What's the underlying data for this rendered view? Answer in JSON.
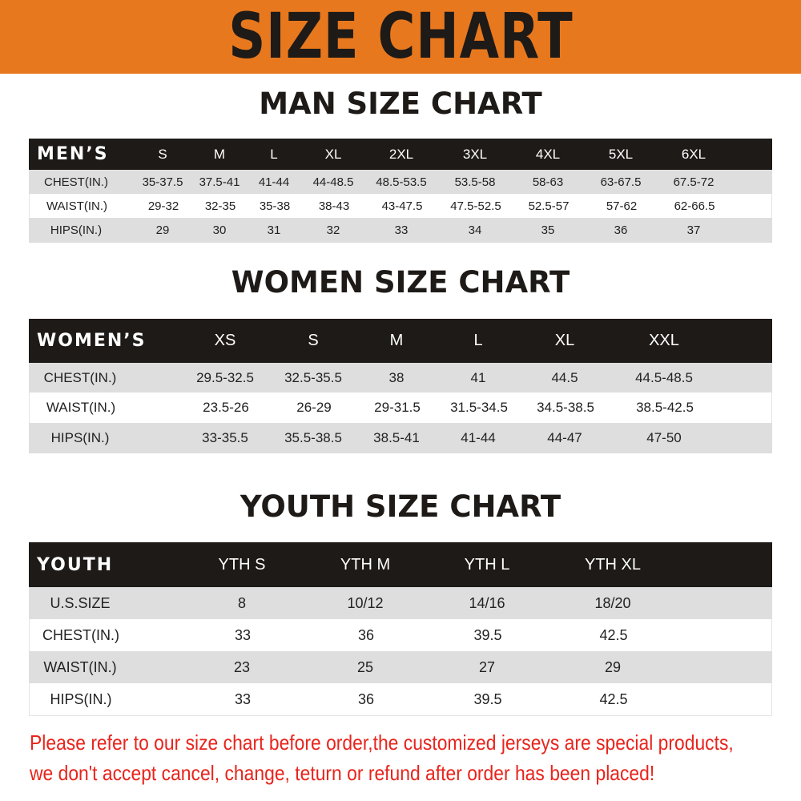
{
  "banner_title": "SIZE CHART",
  "men": {
    "title": "MAN SIZE CHART",
    "header": "MEN’S",
    "sizes": [
      "S",
      "M",
      "L",
      "XL",
      "2XL",
      "3XL",
      "4XL",
      "5XL",
      "6XL"
    ],
    "rows": [
      {
        "label": "CHEST(IN.)",
        "values": [
          "35-37.5",
          "37.5-41",
          "41-44",
          "44-48.5",
          "48.5-53.5",
          "53.5-58",
          "58-63",
          "63-67.5",
          "67.5-72"
        ]
      },
      {
        "label": "WAIST(IN.)",
        "values": [
          "29-32",
          "32-35",
          "35-38",
          "38-43",
          "43-47.5",
          "47.5-52.5",
          "52.5-57",
          "57-62",
          "62-66.5"
        ]
      },
      {
        "label": "HIPS(IN.)",
        "values": [
          "29",
          "30",
          "31",
          "32",
          "33",
          "34",
          "35",
          "36",
          "37"
        ]
      }
    ]
  },
  "women": {
    "title": "WOMEN SIZE CHART",
    "header": "WOMEN’S",
    "sizes": [
      "XS",
      "S",
      "M",
      "L",
      "XL",
      "XXL"
    ],
    "rows": [
      {
        "label": "CHEST(IN.)",
        "values": [
          "29.5-32.5",
          "32.5-35.5",
          "38",
          "41",
          "44.5",
          "44.5-48.5"
        ]
      },
      {
        "label": "WAIST(IN.)",
        "values": [
          "23.5-26",
          "26-29",
          "29-31.5",
          "31.5-34.5",
          "34.5-38.5",
          "38.5-42.5"
        ]
      },
      {
        "label": "HIPS(IN.)",
        "values": [
          "33-35.5",
          "35.5-38.5",
          "38.5-41",
          "41-44",
          "44-47",
          "47-50"
        ]
      }
    ]
  },
  "youth": {
    "title": "YOUTH SIZE CHART",
    "header": "YOUTH",
    "sizes": [
      "YTH S",
      "YTH M",
      "YTH L",
      "YTH XL"
    ],
    "rows": [
      {
        "label": "U.S.SIZE",
        "values": [
          "8",
          "10/12",
          "14/16",
          "18/20"
        ]
      },
      {
        "label": "CHEST(IN.)",
        "values": [
          "33",
          "36",
          "39.5",
          "42.5"
        ]
      },
      {
        "label": "WAIST(IN.)",
        "values": [
          "23",
          "25",
          "27",
          "29"
        ]
      },
      {
        "label": "HIPS(IN.)",
        "values": [
          "33",
          "36",
          "39.5",
          "42.5"
        ]
      }
    ]
  },
  "notice": [
    "Please refer to our size chart before order,the customized jerseys are special products,",
    "we don't accept cancel, change, teturn or refund after order has been placed!"
  ],
  "colors": {
    "banner": "#e8781e",
    "header": "#1e1a17",
    "stripe": "#dedede",
    "notice": "#e8241c"
  }
}
